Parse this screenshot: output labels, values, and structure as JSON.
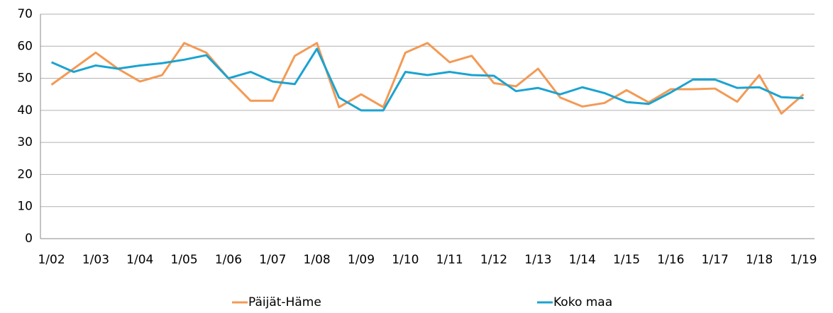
{
  "chart_data": {
    "type": "line",
    "categories": [
      "1/02",
      null,
      "1/03",
      null,
      "1/04",
      null,
      "1/05",
      null,
      "1/06",
      null,
      "1/07",
      null,
      "1/08",
      null,
      "1/09",
      null,
      "1/10",
      null,
      "1/11",
      null,
      "1/12",
      null,
      "1/13",
      null,
      "1/14",
      null,
      "1/15",
      null,
      "1/16",
      null,
      "1/17",
      null,
      "1/18",
      null,
      "1/19"
    ],
    "series": [
      {
        "name": "Päijät-Häme",
        "color": "#f39a55",
        "values": [
          48,
          53,
          58,
          53,
          49,
          51,
          61,
          58,
          50,
          43,
          43,
          57,
          61,
          41,
          45,
          41,
          58,
          61,
          55,
          57,
          48.5,
          47.5,
          53,
          44,
          41.2,
          42.3,
          46.3,
          42.5,
          46.6,
          46.6,
          46.8,
          42.7,
          51,
          39,
          45
        ]
      },
      {
        "name": "Koko maa",
        "color": "#1ba3d1",
        "values": [
          55,
          52,
          54,
          53,
          54,
          54.7,
          55.8,
          57.2,
          50,
          52,
          49,
          48.2,
          59.2,
          44,
          40,
          40,
          52,
          51,
          52,
          51,
          50.8,
          46,
          47,
          45,
          47.2,
          45.4,
          42.6,
          42,
          45.6,
          49.6,
          49.6,
          47,
          47.2,
          44.1,
          43.8
        ]
      }
    ],
    "ylim": [
      0,
      70
    ],
    "yticks": [
      0,
      10,
      20,
      30,
      40,
      50,
      60,
      70
    ],
    "grid": true,
    "legend": "bottom"
  }
}
